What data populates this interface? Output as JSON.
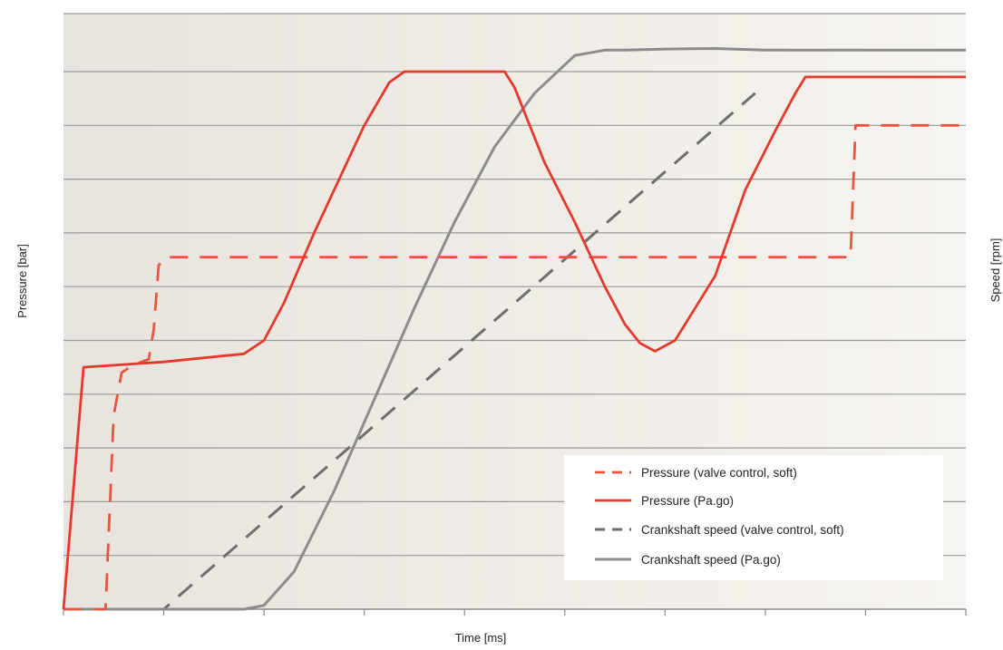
{
  "chart_data": {
    "type": "line",
    "xlabel": "Time [ms]",
    "ylabel": "Pressure [bar]",
    "y2label": "Speed [rpm]",
    "xlim": [
      0,
      9
    ],
    "ylim": [
      0,
      10
    ],
    "grid": true,
    "x_ticks": [
      0,
      1,
      2,
      3,
      4,
      5,
      6,
      7,
      8,
      9
    ],
    "y_gridlines": [
      1,
      2,
      3,
      4,
      5,
      6,
      7,
      8,
      9,
      10
    ],
    "legend_position": "bottom-right",
    "background": {
      "left_color": "#e9e3dd",
      "right_color": "#f6f4ef"
    },
    "series": [
      {
        "name": "Pressure (valve control, soft)",
        "color": "#e8553f",
        "style": "dashed",
        "x": [
          0,
          0.42,
          0.5,
          0.58,
          0.7,
          0.85,
          0.9,
          0.95,
          1.0,
          1.05,
          1.15,
          7.8,
          7.85,
          7.9,
          9.0
        ],
        "y": [
          0,
          0,
          3.6,
          4.4,
          4.55,
          4.65,
          5.2,
          6.4,
          6.5,
          6.55,
          6.55,
          6.55,
          6.55,
          9.0,
          9.0
        ]
      },
      {
        "name": "Pressure (Pa.go)",
        "color": "#e5392b",
        "style": "solid",
        "x": [
          0,
          0.2,
          1.0,
          1.8,
          2.0,
          2.2,
          2.5,
          2.75,
          3.0,
          3.25,
          3.4,
          3.6,
          4.4,
          4.5,
          4.8,
          5.1,
          5.4,
          5.6,
          5.75,
          5.9,
          6.1,
          6.5,
          6.8,
          7.1,
          7.3,
          7.4,
          7.6,
          9.0
        ],
        "y": [
          0,
          4.5,
          4.6,
          4.75,
          5.0,
          5.7,
          7.0,
          8.0,
          9.0,
          9.8,
          10.0,
          10.0,
          10.0,
          9.7,
          8.3,
          7.2,
          6.0,
          5.3,
          4.95,
          4.8,
          5.0,
          6.2,
          7.8,
          8.9,
          9.6,
          9.9,
          9.9,
          9.9
        ]
      },
      {
        "name": "Crankshaft speed (valve control, soft)",
        "color": "#6e6e6e",
        "style": "dashed",
        "x": [
          0,
          1.0,
          6.9
        ],
        "y": [
          0,
          0,
          9.6
        ]
      },
      {
        "name": "Crankshaft speed  (Pa.go)",
        "color": "#8c8c8c",
        "style": "solid",
        "x": [
          0,
          1.8,
          2.0,
          2.3,
          2.7,
          3.1,
          3.5,
          3.9,
          4.3,
          4.7,
          5.1,
          5.4,
          5.6,
          6.0,
          6.5,
          7.0,
          9.0
        ],
        "y": [
          0,
          0,
          0.07,
          0.7,
          2.2,
          3.9,
          5.6,
          7.2,
          8.6,
          9.6,
          10.3,
          10.4,
          10.4,
          10.42,
          10.43,
          10.4,
          10.4
        ]
      }
    ]
  }
}
